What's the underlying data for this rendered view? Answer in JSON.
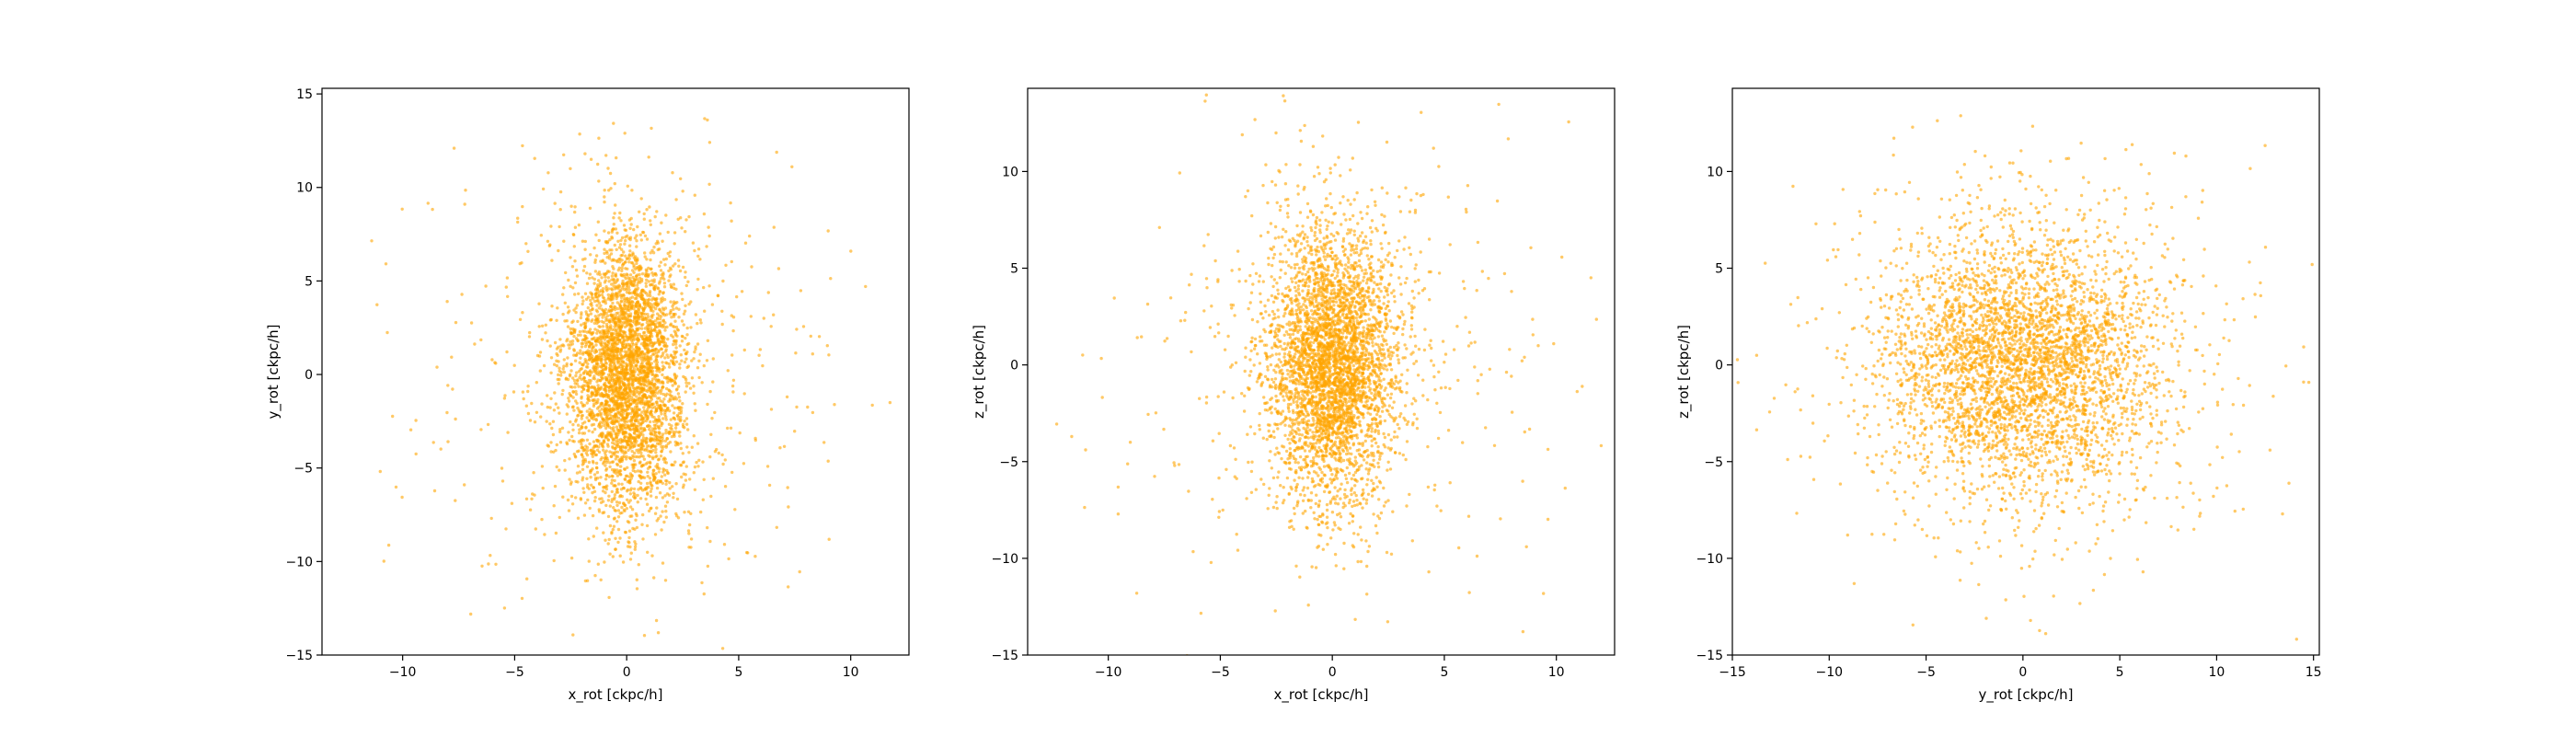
{
  "figure": {
    "point_color": "#ffa500",
    "point_opacity": 0.6
  },
  "chart_data": [
    {
      "type": "scatter",
      "title": "",
      "xlabel": "x_rot [ckpc/h]",
      "ylabel": "y_rot [ckpc/h]",
      "xlim": [
        -13.6,
        12.6
      ],
      "ylim": [
        -15,
        15.3
      ],
      "xticks": [
        -10,
        -5,
        0,
        5,
        10
      ],
      "yticks": [
        -15,
        -10,
        -5,
        0,
        5,
        10,
        15
      ],
      "grid": false,
      "legend": "none",
      "series": [
        {
          "distribution": {
            "n": 4200,
            "center": [
              0,
              0
            ],
            "sigma": [
              1.3,
              3.6
            ],
            "halo_fraction": 0.12,
            "halo_sigma": [
              4.5,
              6.0
            ]
          }
        }
      ]
    },
    {
      "type": "scatter",
      "title": "",
      "xlabel": "x_rot [ckpc/h]",
      "ylabel": "z_rot [ckpc/h]",
      "xlim": [
        -13.6,
        12.6
      ],
      "ylim": [
        -15,
        14.3
      ],
      "xticks": [
        -10,
        -5,
        0,
        5,
        10
      ],
      "yticks": [
        -15,
        -10,
        -5,
        0,
        5,
        10
      ],
      "grid": false,
      "legend": "none",
      "series": [
        {
          "distribution": {
            "n": 4200,
            "center": [
              0,
              0
            ],
            "sigma": [
              1.4,
              3.5
            ],
            "halo_fraction": 0.12,
            "halo_sigma": [
              4.5,
              6.0
            ]
          }
        }
      ]
    },
    {
      "type": "scatter",
      "title": "",
      "xlabel": "y_rot [ckpc/h]",
      "ylabel": "z_rot [ckpc/h]",
      "xlim": [
        -15,
        15.3
      ],
      "ylim": [
        -15,
        14.3
      ],
      "xticks": [
        -15,
        -10,
        -5,
        0,
        5,
        10,
        15
      ],
      "yticks": [
        -15,
        -10,
        -5,
        0,
        5,
        10
      ],
      "grid": false,
      "legend": "none",
      "series": [
        {
          "distribution": {
            "n": 4200,
            "center": [
              0,
              0
            ],
            "sigma": [
              3.6,
              3.5
            ],
            "halo_fraction": 0.12,
            "halo_sigma": [
              6.0,
              6.0
            ]
          }
        }
      ]
    }
  ]
}
